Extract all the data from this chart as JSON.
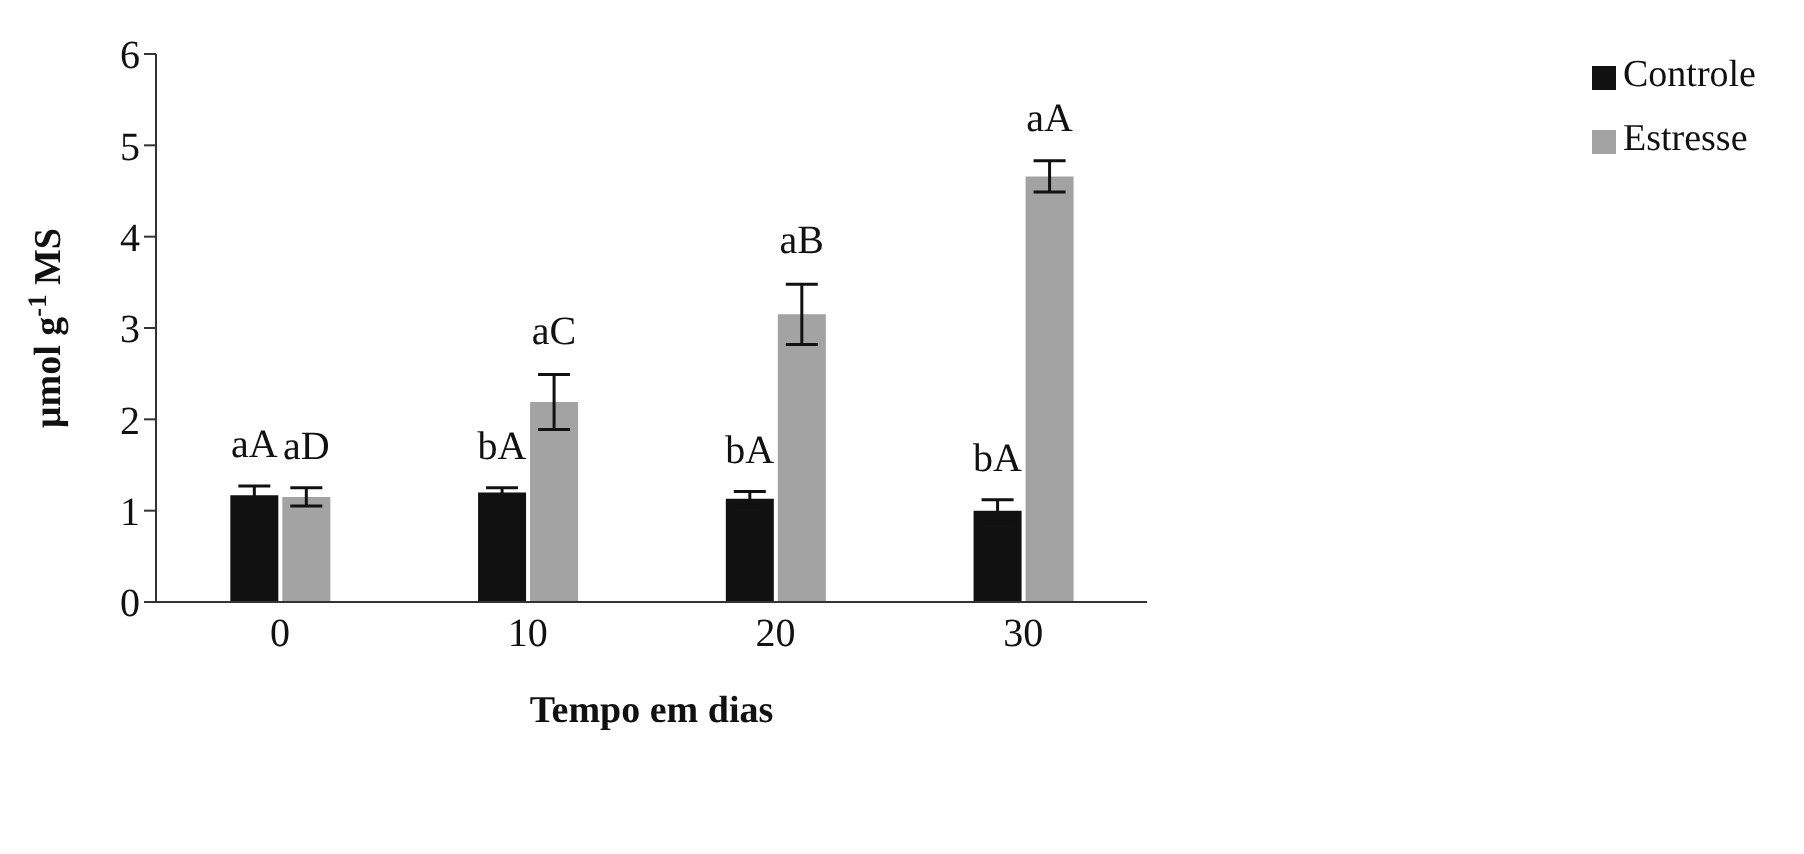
{
  "chart_data": {
    "type": "bar",
    "xlabel": "Tempo em dias",
    "ylabel": "μmol g$^{-1}$ MS",
    "categories": [
      "0",
      "10",
      "20",
      "30"
    ],
    "series": [
      {
        "name": "Controle",
        "color": "#111111",
        "values": [
          1.17,
          1.2,
          1.13,
          1.0
        ],
        "errors": [
          0.1,
          0.05,
          0.08,
          0.12
        ],
        "value_labels": [
          "aA",
          "bA",
          "bA",
          "bA"
        ]
      },
      {
        "name": "Estresse",
        "color": "#a3a3a3",
        "values": [
          1.15,
          2.19,
          3.15,
          4.66
        ],
        "errors": [
          0.1,
          0.3,
          0.33,
          0.17
        ],
        "value_labels": [
          "aD",
          "aC",
          "aB",
          "aA"
        ]
      }
    ],
    "ylim": [
      0,
      6
    ],
    "yticks": [
      0,
      1,
      2,
      3,
      4,
      5,
      6
    ],
    "grid": false,
    "legend": "top right"
  }
}
